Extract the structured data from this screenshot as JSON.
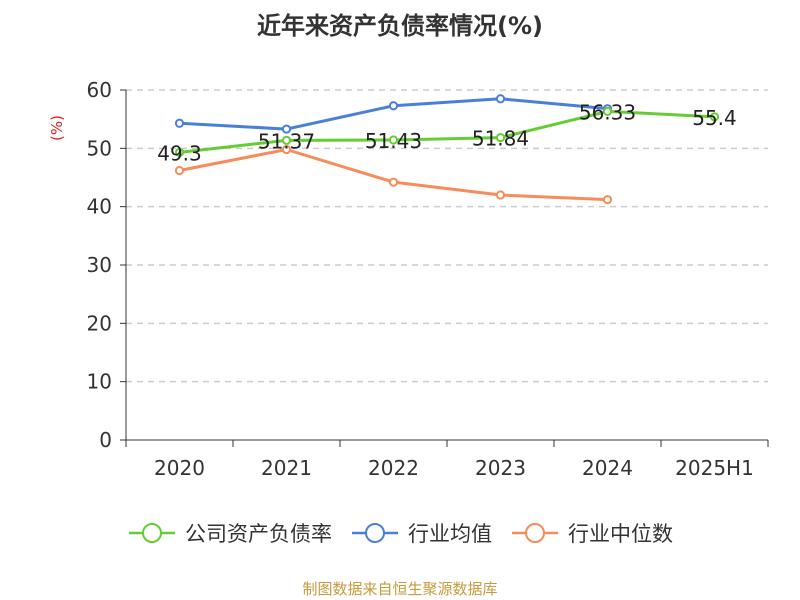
{
  "title": "近年来资产负债率情况(%)",
  "source": "制图数据来自恒生聚源数据库",
  "colors": {
    "company": "#66cc33",
    "industry_avg": "#4a7fd9",
    "industry_median": "#f58c5a",
    "unit": "#e02020"
  },
  "chart_data": {
    "type": "line",
    "title": "近年来资产负债率情况(%)",
    "ylabel": "(%)",
    "xlabel": "",
    "ylim": [
      0,
      60
    ],
    "yticks": [
      0,
      10,
      20,
      30,
      40,
      50,
      60
    ],
    "categories": [
      "2020",
      "2021",
      "2022",
      "2023",
      "2024",
      "2025H1"
    ],
    "grid": true,
    "legend_position": "bottom",
    "series": [
      {
        "name": "公司资产负债率",
        "color": "#66cc33",
        "values": [
          49.3,
          51.37,
          51.43,
          51.84,
          56.33,
          55.4
        ],
        "labels": [
          "49.3",
          "51.37",
          "51.43",
          "51.84",
          "56.33",
          "55.4"
        ]
      },
      {
        "name": "行业均值",
        "color": "#4a7fd9",
        "values": [
          54.3,
          53.3,
          57.3,
          58.5,
          56.8,
          null
        ]
      },
      {
        "name": "行业中位数",
        "color": "#f58c5a",
        "values": [
          46.2,
          49.8,
          44.2,
          42.0,
          41.2,
          null
        ]
      }
    ]
  }
}
